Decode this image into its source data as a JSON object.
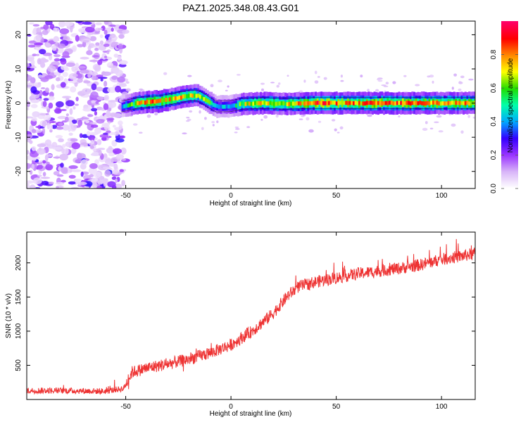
{
  "figure": {
    "title": "PAZ1.2025.348.08.43.G01"
  },
  "chart_data": [
    {
      "type": "heatmap",
      "title": "PAZ1.2025.348.08.43.G01",
      "xlabel": "Height of straight line (km)",
      "ylabel": "Frequency (Hz)",
      "xlim": [
        -97,
        116
      ],
      "ylim": [
        -25,
        24
      ],
      "xticks": [
        -50,
        0,
        50,
        100
      ],
      "yticks": [
        -20,
        -10,
        0,
        10,
        20
      ],
      "grid": false,
      "noise_region": {
        "x": [
          -97,
          -50
        ],
        "y": [
          -25,
          24
        ]
      },
      "ridge": [
        {
          "x": -52,
          "y": -1.0,
          "a": 0.35
        },
        {
          "x": -48,
          "y": -0.5,
          "a": 0.55
        },
        {
          "x": -45,
          "y": 0.0,
          "a": 0.7
        },
        {
          "x": -40,
          "y": 0.3,
          "a": 0.8
        },
        {
          "x": -35,
          "y": 0.5,
          "a": 0.8
        },
        {
          "x": -30,
          "y": 1.0,
          "a": 0.75
        },
        {
          "x": -25,
          "y": 1.6,
          "a": 0.75
        },
        {
          "x": -20,
          "y": 2.2,
          "a": 0.7
        },
        {
          "x": -16,
          "y": 2.2,
          "a": 0.65
        },
        {
          "x": -13,
          "y": 1.2,
          "a": 0.6
        },
        {
          "x": -10,
          "y": 0.0,
          "a": 0.55
        },
        {
          "x": -7,
          "y": -1.0,
          "a": 0.4
        },
        {
          "x": 0,
          "y": -0.9,
          "a": 0.4
        },
        {
          "x": 5,
          "y": -0.2,
          "a": 0.65
        },
        {
          "x": 15,
          "y": 0.0,
          "a": 0.75
        },
        {
          "x": 25,
          "y": -0.2,
          "a": 0.7
        },
        {
          "x": 40,
          "y": 0.0,
          "a": 0.85
        },
        {
          "x": 60,
          "y": 0.0,
          "a": 0.8
        },
        {
          "x": 80,
          "y": 0.0,
          "a": 0.85
        },
        {
          "x": 100,
          "y": 0.0,
          "a": 0.8
        },
        {
          "x": 116,
          "y": 0.0,
          "a": 0.75
        }
      ],
      "colorbar": {
        "label": "Normalized spectral amplitude",
        "range": [
          0,
          1
        ],
        "ticks": [
          "0.0",
          "0.2",
          "0.4",
          "0.6",
          "0.8"
        ],
        "tick_values": [
          0.0,
          0.2,
          0.4,
          0.6,
          0.8
        ],
        "colors": [
          "#ffffff",
          "#d8b4f8",
          "#9933ff",
          "#3300ff",
          "#00aaff",
          "#00ffaa",
          "#22dd00",
          "#ffff00",
          "#ff8800",
          "#ff0000",
          "#ff0066"
        ]
      }
    },
    {
      "type": "line",
      "xlabel": "Height of straight line (km)",
      "ylabel": "SNR (10 * v/v)",
      "xlim": [
        -97,
        116
      ],
      "ylim": [
        0,
        2450
      ],
      "xticks": [
        -50,
        0,
        50,
        100
      ],
      "yticks": [
        500,
        1000,
        1500,
        2000
      ],
      "grid": false,
      "series": [
        {
          "name": "SNR",
          "color": "#ee3333",
          "trend": [
            [
              -97,
              130
            ],
            [
              -80,
              130
            ],
            [
              -60,
              120
            ],
            [
              -51,
              160
            ],
            [
              -47,
              400
            ],
            [
              -40,
              460
            ],
            [
              -30,
              520
            ],
            [
              -20,
              590
            ],
            [
              -10,
              680
            ],
            [
              0,
              800
            ],
            [
              10,
              1000
            ],
            [
              20,
              1260
            ],
            [
              27,
              1520
            ],
            [
              32,
              1650
            ],
            [
              40,
              1720
            ],
            [
              50,
              1780
            ],
            [
              60,
              1840
            ],
            [
              70,
              1880
            ],
            [
              80,
              1920
            ],
            [
              90,
              1970
            ],
            [
              100,
              2050
            ],
            [
              110,
              2100
            ],
            [
              116,
              2140
            ]
          ],
          "noise_amplitude": 75
        }
      ]
    }
  ]
}
